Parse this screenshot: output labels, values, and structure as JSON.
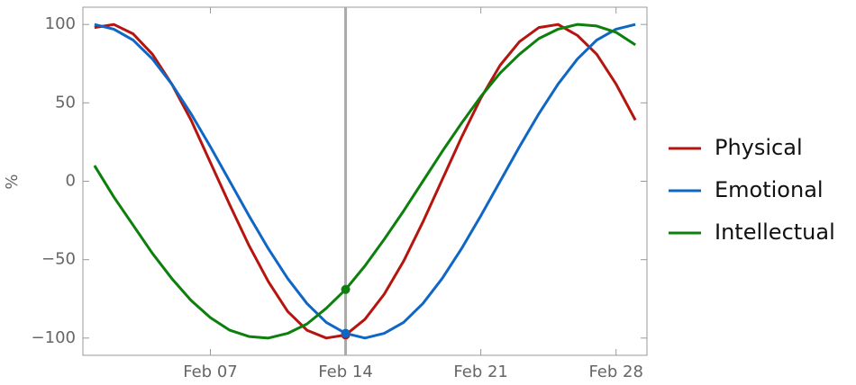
{
  "chart_data": {
    "type": "line",
    "y_label": "%",
    "x": [
      1,
      2,
      3,
      4,
      5,
      6,
      7,
      8,
      9,
      10,
      11,
      12,
      13,
      14,
      15,
      16,
      17,
      18,
      19,
      20,
      21,
      22,
      23,
      24,
      25,
      26,
      27,
      28,
      29
    ],
    "xlim": [
      0.4,
      29.6
    ],
    "xticks": [
      {
        "value": 7,
        "label": "Feb 07"
      },
      {
        "value": 14,
        "label": "Feb 14"
      },
      {
        "value": 21,
        "label": "Feb 21"
      },
      {
        "value": 28,
        "label": "Feb 28"
      }
    ],
    "ylim": [
      -111,
      111
    ],
    "yticks": [
      {
        "value": -100,
        "label": "−100"
      },
      {
        "value": -50,
        "label": "−50"
      },
      0,
      50,
      100
    ],
    "marker_x": 14,
    "marker_color": "#aaaaaa",
    "series": [
      {
        "name": "Physical",
        "color": "#b5150e",
        "values": [
          98,
          100,
          94,
          81,
          62,
          39,
          12,
          -15,
          -41,
          -64,
          -83,
          -95,
          -100,
          -98,
          -88,
          -72,
          -51,
          -26,
          1,
          28,
          53,
          74,
          89,
          98,
          100,
          93,
          81,
          62,
          39
        ]
      },
      {
        "name": "Emotional",
        "color": "#0f66c4",
        "values": [
          100,
          97,
          90,
          78,
          62,
          43,
          22,
          0,
          -22,
          -43,
          -62,
          -78,
          -90,
          -97,
          -100,
          -97,
          -90,
          -78,
          -62,
          -43,
          -22,
          0,
          22,
          43,
          62,
          78,
          90,
          97,
          100
        ]
      },
      {
        "name": "Intellectual",
        "color": "#0c7f0c",
        "values": [
          10,
          -10,
          -28,
          -46,
          -62,
          -76,
          -87,
          -95,
          -99,
          -100,
          -97,
          -91,
          -81,
          -69,
          -54,
          -37,
          -19,
          0,
          19,
          37,
          54,
          69,
          81,
          91,
          97,
          100,
          99,
          95,
          87
        ]
      }
    ]
  }
}
